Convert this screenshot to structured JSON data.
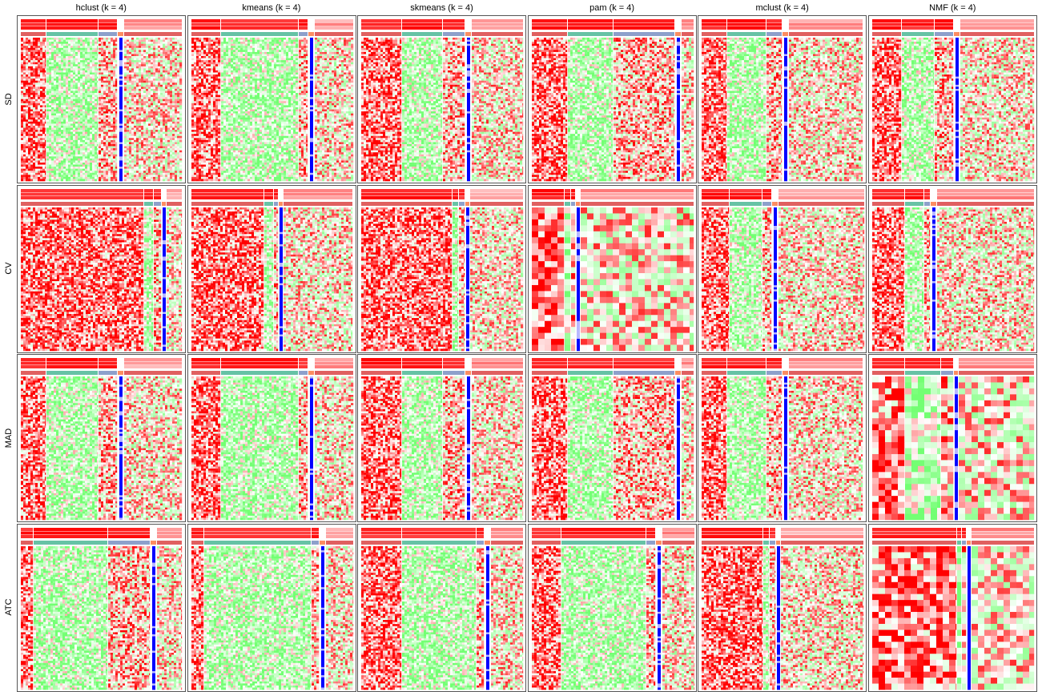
{
  "figure": {
    "columns": [
      "hclust (k = 4)",
      "kmeans (k = 4)",
      "skmeans (k = 4)",
      "pam (k = 4)",
      "mclust (k = 4)",
      "NMF (k = 4)"
    ],
    "rows": [
      "SD",
      "CV",
      "MAD",
      "ATC"
    ]
  },
  "colors": {
    "high": "#ff0000",
    "mid": "#ffffff",
    "low": "#00ff00",
    "silhouette_low": "#ffffff",
    "silhouette_high": "#ff0000",
    "class_track": [
      "#e06060",
      "#66c2a5",
      "#8da0cb",
      "#fc8d62"
    ],
    "marker": "#0000ff",
    "panel_border": "#555555"
  },
  "chart_data": {
    "type": "heatmap",
    "layout": "grid",
    "rows": [
      "SD",
      "CV",
      "MAD",
      "ATC"
    ],
    "columns": [
      "hclust (k = 4)",
      "kmeans (k = 4)",
      "skmeans (k = 4)",
      "pam (k = 4)",
      "mclust (k = 4)",
      "NMF (k = 4)"
    ],
    "k": 4,
    "value_scale": [
      "low",
      "mid",
      "high"
    ]
  }
}
